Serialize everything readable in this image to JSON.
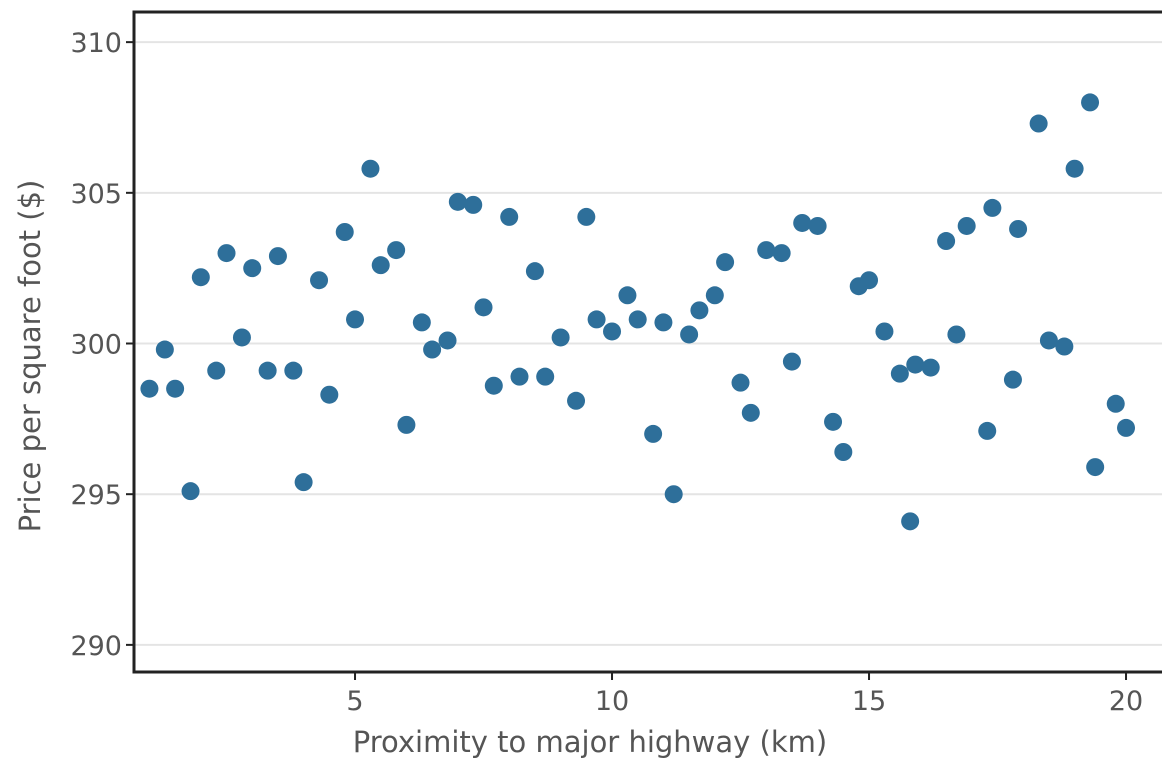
{
  "chart_data": {
    "type": "scatter",
    "title": "",
    "xlabel": "Proximity to major highway (km)",
    "ylabel": "Price per square foot ($)",
    "xlim": [
      0.7,
      20.7
    ],
    "ylim": [
      289.1,
      311.0
    ],
    "xticks": [
      5,
      10,
      15,
      20
    ],
    "yticks": [
      290,
      295,
      300,
      305,
      310
    ],
    "xtick_labels": [
      "5",
      "10",
      "15",
      "20"
    ],
    "ytick_labels": [
      "290",
      "295",
      "300",
      "305",
      "310"
    ],
    "grid": "horizontal",
    "legend": "none",
    "point_color": "#2e6f9a",
    "points": [
      {
        "x": 1.0,
        "y": 298.5
      },
      {
        "x": 1.3,
        "y": 299.8
      },
      {
        "x": 1.5,
        "y": 298.5
      },
      {
        "x": 1.8,
        "y": 295.1
      },
      {
        "x": 2.0,
        "y": 302.2
      },
      {
        "x": 2.3,
        "y": 299.1
      },
      {
        "x": 2.5,
        "y": 303.0
      },
      {
        "x": 2.8,
        "y": 300.2
      },
      {
        "x": 3.0,
        "y": 302.5
      },
      {
        "x": 3.3,
        "y": 299.1
      },
      {
        "x": 3.5,
        "y": 302.9
      },
      {
        "x": 3.8,
        "y": 299.1
      },
      {
        "x": 4.0,
        "y": 295.4
      },
      {
        "x": 4.3,
        "y": 302.1
      },
      {
        "x": 4.5,
        "y": 298.3
      },
      {
        "x": 4.8,
        "y": 303.7
      },
      {
        "x": 5.0,
        "y": 300.8
      },
      {
        "x": 5.3,
        "y": 305.8
      },
      {
        "x": 5.5,
        "y": 302.6
      },
      {
        "x": 5.8,
        "y": 303.1
      },
      {
        "x": 6.0,
        "y": 297.3
      },
      {
        "x": 6.3,
        "y": 300.7
      },
      {
        "x": 6.5,
        "y": 299.8
      },
      {
        "x": 6.8,
        "y": 300.1
      },
      {
        "x": 7.0,
        "y": 304.7
      },
      {
        "x": 7.3,
        "y": 304.6
      },
      {
        "x": 7.5,
        "y": 301.2
      },
      {
        "x": 7.7,
        "y": 298.6
      },
      {
        "x": 8.0,
        "y": 304.2
      },
      {
        "x": 8.2,
        "y": 298.9
      },
      {
        "x": 8.5,
        "y": 302.4
      },
      {
        "x": 8.7,
        "y": 298.9
      },
      {
        "x": 9.0,
        "y": 300.2
      },
      {
        "x": 9.3,
        "y": 298.1
      },
      {
        "x": 9.5,
        "y": 304.2
      },
      {
        "x": 9.7,
        "y": 300.8
      },
      {
        "x": 10.0,
        "y": 300.4
      },
      {
        "x": 10.3,
        "y": 301.6
      },
      {
        "x": 10.5,
        "y": 300.8
      },
      {
        "x": 10.8,
        "y": 297.0
      },
      {
        "x": 11.0,
        "y": 300.7
      },
      {
        "x": 11.2,
        "y": 295.0
      },
      {
        "x": 11.5,
        "y": 300.3
      },
      {
        "x": 11.7,
        "y": 301.1
      },
      {
        "x": 12.0,
        "y": 301.6
      },
      {
        "x": 12.2,
        "y": 302.7
      },
      {
        "x": 12.5,
        "y": 298.7
      },
      {
        "x": 12.7,
        "y": 297.7
      },
      {
        "x": 13.0,
        "y": 303.1
      },
      {
        "x": 13.3,
        "y": 303.0
      },
      {
        "x": 13.5,
        "y": 299.4
      },
      {
        "x": 13.7,
        "y": 304.0
      },
      {
        "x": 14.0,
        "y": 303.9
      },
      {
        "x": 14.3,
        "y": 297.4
      },
      {
        "x": 14.5,
        "y": 296.4
      },
      {
        "x": 14.8,
        "y": 301.9
      },
      {
        "x": 15.0,
        "y": 302.1
      },
      {
        "x": 15.3,
        "y": 300.4
      },
      {
        "x": 15.6,
        "y": 299.0
      },
      {
        "x": 15.8,
        "y": 294.1
      },
      {
        "x": 15.9,
        "y": 299.3
      },
      {
        "x": 16.2,
        "y": 299.2
      },
      {
        "x": 16.5,
        "y": 303.4
      },
      {
        "x": 16.7,
        "y": 300.3
      },
      {
        "x": 16.9,
        "y": 303.9
      },
      {
        "x": 17.3,
        "y": 297.1
      },
      {
        "x": 17.4,
        "y": 304.5
      },
      {
        "x": 17.8,
        "y": 298.8
      },
      {
        "x": 17.9,
        "y": 303.8
      },
      {
        "x": 18.3,
        "y": 307.3
      },
      {
        "x": 18.5,
        "y": 300.1
      },
      {
        "x": 18.8,
        "y": 299.9
      },
      {
        "x": 19.0,
        "y": 305.8
      },
      {
        "x": 19.3,
        "y": 308.0
      },
      {
        "x": 19.4,
        "y": 295.9
      },
      {
        "x": 19.8,
        "y": 298.0
      },
      {
        "x": 20.0,
        "y": 297.2
      }
    ]
  }
}
